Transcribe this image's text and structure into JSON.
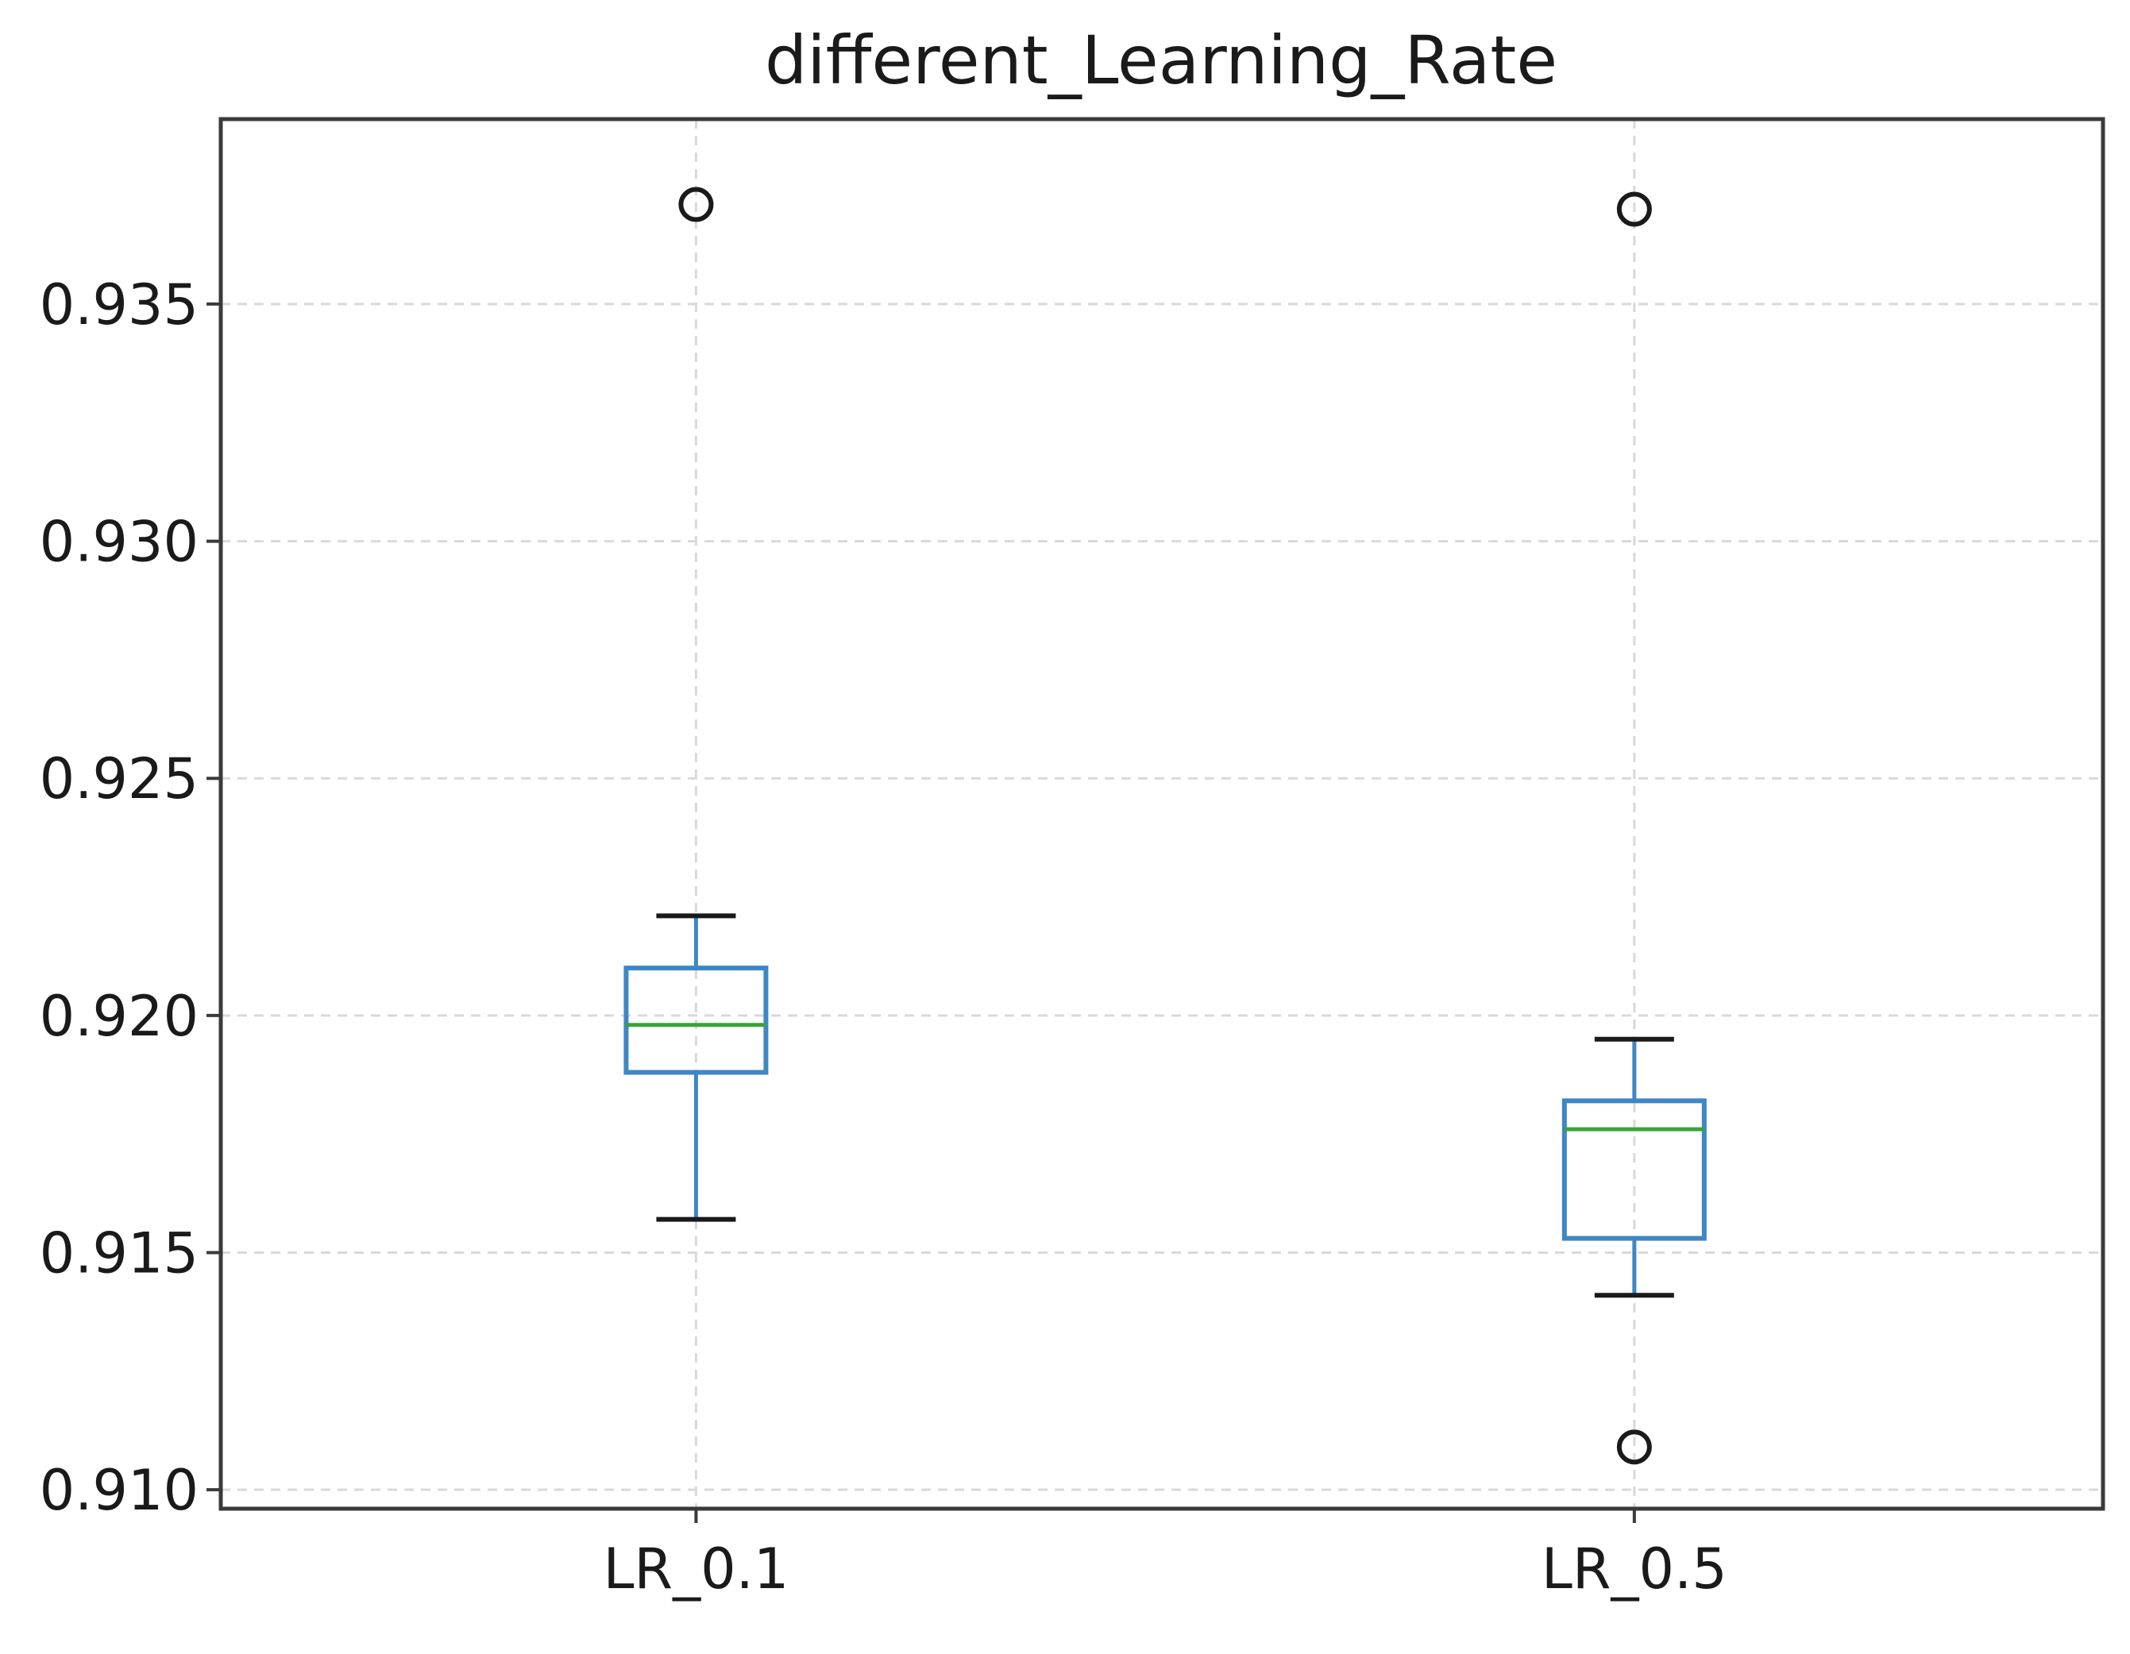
{
  "chart_data": {
    "type": "boxplot",
    "title": "different_Learning_Rate",
    "xlabel": "",
    "ylabel": "",
    "ylim": [
      0.9096,
      0.9389
    ],
    "yticks": [
      0.91,
      0.915,
      0.92,
      0.925,
      0.93,
      0.935
    ],
    "ytick_labels": [
      "0.910",
      "0.915",
      "0.920",
      "0.925",
      "0.930",
      "0.935"
    ],
    "grid": true,
    "categories": [
      "LR_0.1",
      "LR_0.5"
    ],
    "boxes": [
      {
        "name": "LR_0.1",
        "whisker_low": 0.9157,
        "q1": 0.9188,
        "median": 0.9198,
        "q3": 0.921,
        "whisker_high": 0.9221,
        "outliers": [
          0.9371
        ]
      },
      {
        "name": "LR_0.5",
        "whisker_low": 0.9141,
        "q1": 0.9153,
        "median": 0.9176,
        "q3": 0.9182,
        "whisker_high": 0.9195,
        "outliers": [
          0.937,
          0.9109
        ]
      }
    ],
    "colors": {
      "box": "#3d87c4",
      "median": "#3aa33a",
      "whisker_cap": "#1a1a1a",
      "outlier": "#1a1a1a"
    }
  }
}
